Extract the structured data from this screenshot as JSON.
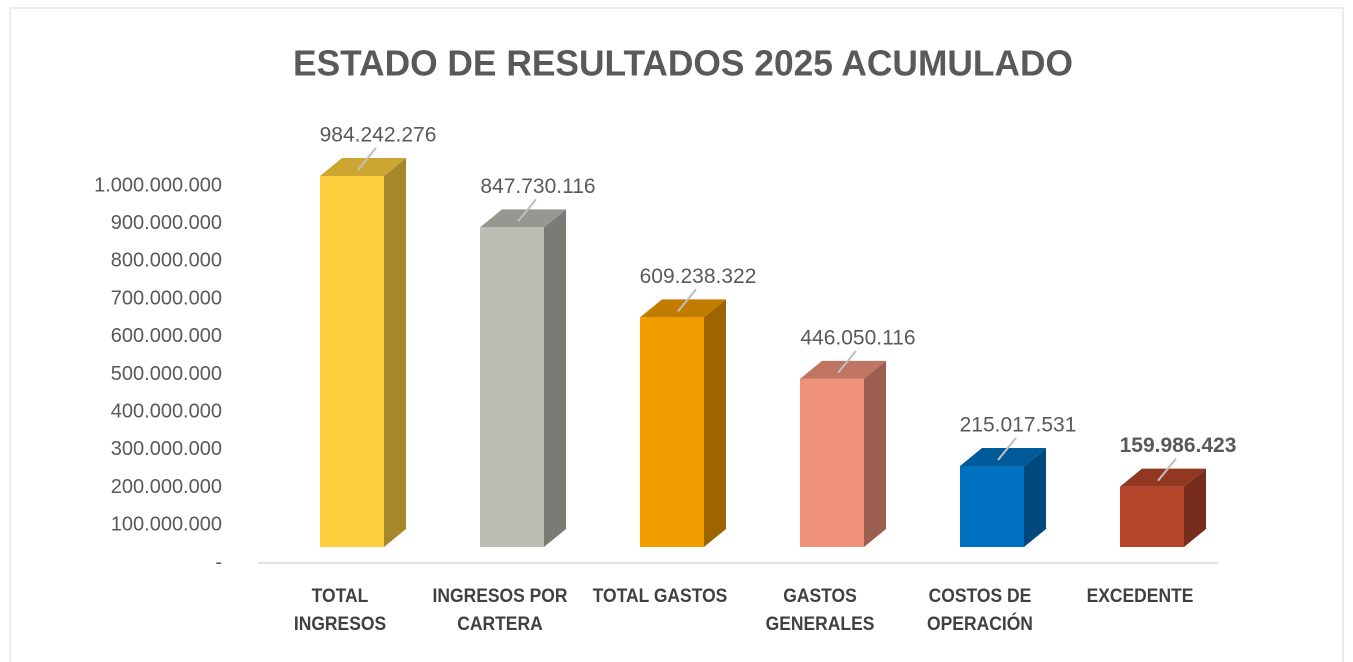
{
  "chart_data": {
    "type": "bar3d",
    "title": "ESTADO DE RESULTADOS 2025 ACUMULADO",
    "categories": [
      "TOTAL INGRESOS",
      "INGRESOS POR CARTERA",
      "TOTAL GASTOS",
      "GASTOS GENERALES",
      "COSTOS DE OPERACIÓN",
      "EXCEDENTE"
    ],
    "values": [
      984242276,
      847730116,
      609238322,
      446050116,
      215017531,
      159986423
    ],
    "value_labels": [
      "984.242.276",
      "847.730.116",
      "609.238.322",
      "446.050.116",
      "215.017.531",
      "159.986.423"
    ],
    "colors": [
      "#ffcf40",
      "#bdbdb5",
      "#f29c00",
      "#f0917a",
      "#0070c0",
      "#b5452a"
    ],
    "ylim": [
      0,
      1000000000
    ],
    "yticks": [
      {
        "value": 0,
        "label": "-"
      },
      {
        "value": 100000000,
        "label": "100.000.000"
      },
      {
        "value": 200000000,
        "label": "200.000.000"
      },
      {
        "value": 300000000,
        "label": "300.000.000"
      },
      {
        "value": 400000000,
        "label": "400.000.000"
      },
      {
        "value": 500000000,
        "label": "500.000.000"
      },
      {
        "value": 600000000,
        "label": "600.000.000"
      },
      {
        "value": 700000000,
        "label": "700.000.000"
      },
      {
        "value": 800000000,
        "label": "800.000.000"
      },
      {
        "value": 900000000,
        "label": "900.000.000"
      },
      {
        "value": 1000000000,
        "label": "1.000.000.000"
      }
    ],
    "grid": false
  }
}
